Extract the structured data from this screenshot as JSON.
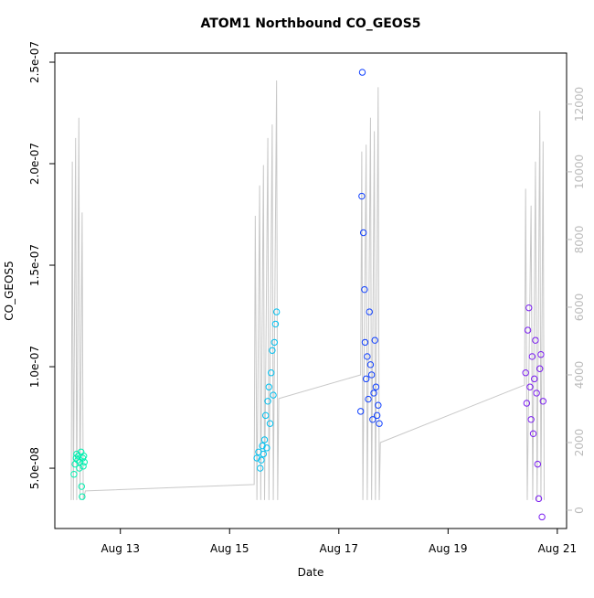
{
  "chart_data": {
    "type": "scatter",
    "title": "ATOM1 Northbound CO_GEOS5",
    "x_label": "Date",
    "y_label": "CO_GEOS5",
    "xlim": [
      11.8,
      21.17
    ],
    "xticks": [
      {
        "value": 13,
        "label": "Aug 13"
      },
      {
        "value": 15,
        "label": "Aug 15"
      },
      {
        "value": 17,
        "label": "Aug 17"
      },
      {
        "value": 19,
        "label": "Aug 19"
      },
      {
        "value": 21,
        "label": "Aug 21"
      }
    ],
    "ylim": [
      2.03e-08,
      2.545e-07
    ],
    "yticks": [
      {
        "value": 5e-08,
        "label": "5.0e-08"
      },
      {
        "value": 1e-07,
        "label": "1.0e-07"
      },
      {
        "value": 1.5e-07,
        "label": "1.5e-07"
      },
      {
        "value": 2e-07,
        "label": "2.0e-07"
      },
      {
        "value": 2.5e-07,
        "label": "2.5e-07"
      }
    ],
    "y2lim": [
      -540,
      13510
    ],
    "y2ticks": [
      0,
      2000,
      4000,
      6000,
      8000,
      10000,
      12000
    ],
    "y2_color": "#bbbbbb",
    "series": [
      {
        "type": "line",
        "axis": "y2",
        "color": "#c8c8c8",
        "x": [
          12.1,
          12.12,
          12.14,
          12.18,
          12.2,
          12.24,
          12.26,
          12.3,
          12.32,
          12.36,
          15.45,
          15.47,
          15.5,
          15.55,
          15.57,
          15.62,
          15.64,
          15.7,
          15.72,
          15.78,
          15.8,
          15.86,
          15.88,
          15.9,
          17.4,
          17.42,
          17.44,
          17.5,
          17.52,
          17.58,
          17.6,
          17.65,
          17.67,
          17.72,
          17.74,
          17.76,
          20.4,
          20.42,
          20.45,
          20.52,
          20.55,
          20.6,
          20.63,
          20.68,
          20.7,
          20.74,
          20.76
        ],
        "values": [
          300,
          10300,
          300,
          11000,
          300,
          11600,
          300,
          8800,
          300,
          570,
          760,
          8700,
          300,
          9600,
          300,
          10200,
          300,
          11000,
          300,
          11400,
          300,
          12700,
          300,
          3300,
          4000,
          10600,
          300,
          10800,
          300,
          11600,
          300,
          11200,
          300,
          12500,
          300,
          2000,
          3700,
          9500,
          300,
          9000,
          300,
          10300,
          300,
          11800,
          300,
          10900,
          300
        ]
      },
      {
        "type": "scatter",
        "color": "#00f0b0",
        "x": [
          12.15,
          12.17,
          12.19,
          12.2,
          12.22,
          12.23,
          12.25,
          12.26,
          12.28,
          12.29,
          12.3,
          12.31,
          12.32,
          12.33,
          12.34
        ],
        "values": [
          4.7e-08,
          5.2e-08,
          5.5e-08,
          5.7e-08,
          5.4e-08,
          5.6e-08,
          5e-08,
          5.3e-08,
          5.8e-08,
          4.1e-08,
          3.6e-08,
          5.5e-08,
          5.1e-08,
          5.6e-08,
          5.3e-08
        ]
      },
      {
        "type": "scatter",
        "color": "#00c0f0",
        "x": [
          15.5,
          15.53,
          15.56,
          15.58,
          15.6,
          15.62,
          15.64,
          15.66,
          15.68,
          15.7,
          15.72,
          15.74,
          15.76,
          15.78,
          15.8,
          15.82,
          15.84,
          15.86
        ],
        "values": [
          5.5e-08,
          5.8e-08,
          5e-08,
          5.4e-08,
          6.1e-08,
          5.7e-08,
          6.4e-08,
          7.6e-08,
          6e-08,
          8.3e-08,
          9e-08,
          7.2e-08,
          9.7e-08,
          1.08e-07,
          8.6e-08,
          1.12e-07,
          1.21e-07,
          1.27e-07
        ]
      },
      {
        "type": "scatter",
        "color": "#1040ff",
        "x": [
          17.4,
          17.42,
          17.43,
          17.45,
          17.47,
          17.48,
          17.5,
          17.52,
          17.54,
          17.56,
          17.58,
          17.6,
          17.62,
          17.64,
          17.66,
          17.68,
          17.7,
          17.72,
          17.74
        ],
        "values": [
          7.8e-08,
          1.84e-07,
          2.45e-07,
          1.66e-07,
          1.38e-07,
          1.12e-07,
          9.4e-08,
          1.05e-07,
          8.4e-08,
          1.27e-07,
          1.01e-07,
          9.6e-08,
          7.4e-08,
          8.7e-08,
          1.13e-07,
          9e-08,
          7.6e-08,
          8.1e-08,
          7.2e-08
        ]
      },
      {
        "type": "scatter",
        "color": "#7a1cf0",
        "x": [
          20.42,
          20.44,
          20.46,
          20.48,
          20.5,
          20.52,
          20.54,
          20.56,
          20.58,
          20.6,
          20.62,
          20.64,
          20.66,
          20.68,
          20.7,
          20.72,
          20.74
        ],
        "values": [
          9.7e-08,
          8.2e-08,
          1.18e-07,
          1.29e-07,
          9e-08,
          7.4e-08,
          1.05e-07,
          6.7e-08,
          9.4e-08,
          1.13e-07,
          8.7e-08,
          5.2e-08,
          3.5e-08,
          9.9e-08,
          1.06e-07,
          2.6e-08,
          8.3e-08
        ]
      }
    ]
  }
}
